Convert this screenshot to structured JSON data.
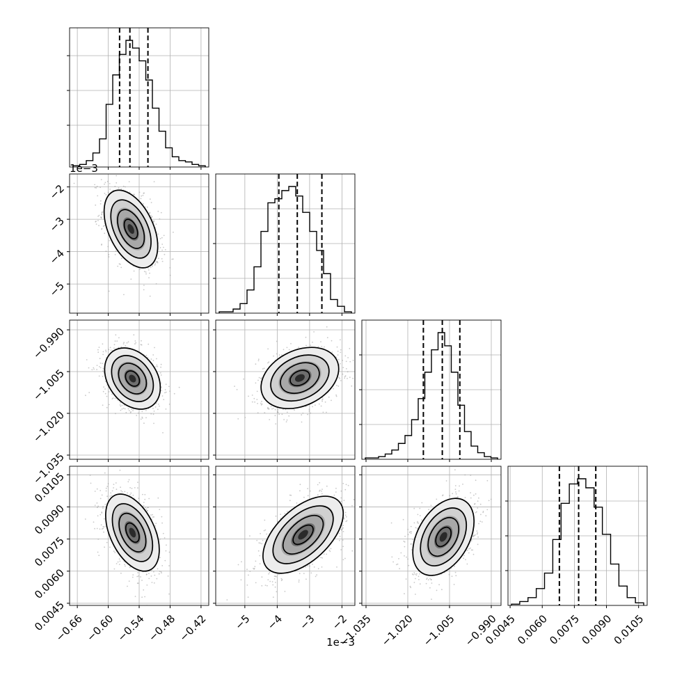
{
  "chart_data": {
    "type": "corner",
    "params": [
      {
        "range": [
          -0.675,
          -0.405
        ],
        "ticks": [
          -0.66,
          -0.6,
          -0.54,
          -0.48,
          -0.42
        ],
        "tick_labels": [
          "−0.66",
          "−0.60",
          "−0.54",
          "−0.48",
          "−0.42"
        ],
        "quantiles": [
          -0.578,
          -0.558,
          -0.523
        ],
        "hist": [
          1,
          2,
          5,
          11,
          22,
          49,
          72,
          88,
          99,
          93,
          83,
          68,
          46,
          28,
          15,
          8,
          5,
          4,
          2,
          1
        ]
      },
      {
        "range": [
          -5.9,
          -1.6
        ],
        "ticks": [
          -5,
          -4,
          -3,
          -2
        ],
        "tick_labels": [
          "−5",
          "−4",
          "−3",
          "−2"
        ],
        "quantiles": [
          -3.95,
          -3.38,
          -2.62
        ],
        "hist": [
          1,
          1,
          3,
          7,
          17,
          34,
          60,
          81,
          84,
          90,
          93,
          86,
          74,
          60,
          46,
          29,
          10,
          5,
          1
        ],
        "offset_text": "1e−3"
      },
      {
        "range": [
          -1.0365,
          -0.9865
        ],
        "ticks": [
          -1.035,
          -1.02,
          -1.005,
          -0.99
        ],
        "tick_labels": [
          "−1.035",
          "−1.020",
          "−1.005",
          "−0.990"
        ],
        "quantiles": [
          -1.0144,
          -1.0076,
          -1.0013
        ],
        "hist": [
          1,
          1,
          2,
          4,
          7,
          12,
          18,
          30,
          46,
          66,
          83,
          96,
          86,
          66,
          41,
          21,
          10,
          5,
          2,
          1
        ]
      },
      {
        "range": [
          0.0044,
          0.0109
        ],
        "ticks": [
          0.0045,
          0.006,
          0.0075,
          0.009,
          0.0105
        ],
        "tick_labels": [
          "0.0045",
          "0.0060",
          "0.0075",
          "0.0090",
          "0.0105"
        ],
        "quantiles": [
          0.0068,
          0.0077,
          0.0085
        ],
        "hist": [
          1,
          3,
          6,
          13,
          25,
          51,
          79,
          94,
          98,
          91,
          76,
          55,
          32,
          15,
          6,
          2
        ]
      }
    ],
    "pairs": [
      {
        "row": 1,
        "col": 0,
        "center": [
          -0.556,
          -3.3
        ],
        "sigma": [
          0.026,
          0.6
        ],
        "rho": -0.45
      },
      {
        "row": 2,
        "col": 0,
        "center": [
          -0.553,
          -1.0075
        ],
        "sigma": [
          0.027,
          0.0055
        ],
        "rho": -0.3
      },
      {
        "row": 2,
        "col": 1,
        "center": [
          -3.3,
          -1.0073
        ],
        "sigma": [
          0.6,
          0.0055
        ],
        "rho": 0.3
      },
      {
        "row": 3,
        "col": 0,
        "center": [
          -0.553,
          0.0078
        ],
        "sigma": [
          0.026,
          0.0009
        ],
        "rho": -0.45
      },
      {
        "row": 3,
        "col": 1,
        "center": [
          -3.2,
          0.0077
        ],
        "sigma": [
          0.62,
          0.0009
        ],
        "rho": 0.55
      },
      {
        "row": 3,
        "col": 2,
        "center": [
          -1.0072,
          0.0076
        ],
        "sigma": [
          0.0055,
          0.0009
        ],
        "rho": 0.4
      }
    ],
    "grid": true
  }
}
